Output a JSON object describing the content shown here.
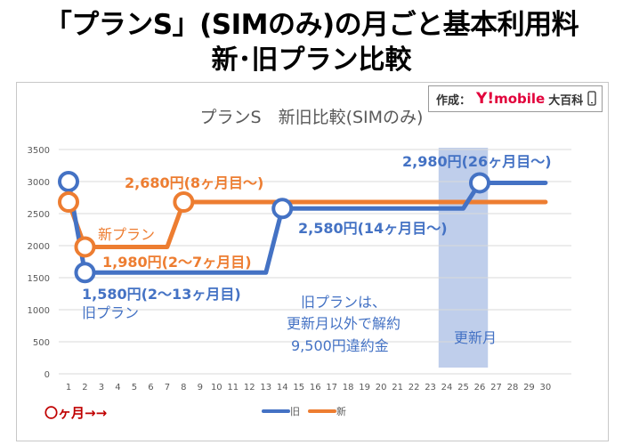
{
  "header": {
    "title_line1": "「プランS」(SIMのみ)の月ごと基本利用料",
    "title_line2": "新･旧プラン比較"
  },
  "credit": {
    "label": "作成：",
    "brand_y": "Y!",
    "brand_rest": "mobile",
    "suffix": "大百科"
  },
  "chart_data": {
    "type": "line",
    "title": "プランS　新旧比較(SIMのみ)",
    "xlabel": "〇ヶ月→→",
    "ylabel": "",
    "ylim": [
      0,
      3500
    ],
    "yticks": [
      0,
      500,
      1000,
      1500,
      2000,
      2500,
      3000,
      3500
    ],
    "categories": [
      1,
      2,
      3,
      4,
      5,
      6,
      7,
      8,
      9,
      10,
      11,
      12,
      13,
      14,
      15,
      16,
      17,
      18,
      19,
      20,
      21,
      22,
      23,
      24,
      25,
      26,
      27,
      28,
      29,
      30
    ],
    "series": [
      {
        "name": "旧",
        "color": "#4472c4",
        "values": [
          3000,
          1580,
          1580,
          1580,
          1580,
          1580,
          1580,
          1580,
          1580,
          1580,
          1580,
          1580,
          1580,
          2580,
          2580,
          2580,
          2580,
          2580,
          2580,
          2580,
          2580,
          2580,
          2580,
          2580,
          2580,
          2980,
          2980,
          2980,
          2980,
          2980
        ]
      },
      {
        "name": "新",
        "color": "#ed7d31",
        "values": [
          2680,
          1980,
          1980,
          1980,
          1980,
          1980,
          1980,
          2680,
          2680,
          2680,
          2680,
          2680,
          2680,
          2680,
          2680,
          2680,
          2680,
          2680,
          2680,
          2680,
          2680,
          2680,
          2680,
          2680,
          2680,
          2680,
          2680,
          2680,
          2680,
          2680
        ]
      }
    ],
    "markers": [
      {
        "series": 0,
        "x": 1,
        "y": 3000
      },
      {
        "series": 0,
        "x": 2,
        "y": 1580
      },
      {
        "series": 0,
        "x": 14,
        "y": 2580
      },
      {
        "series": 0,
        "x": 26,
        "y": 2980
      },
      {
        "series": 1,
        "x": 1,
        "y": 2680
      },
      {
        "series": 1,
        "x": 2,
        "y": 1980
      },
      {
        "series": 1,
        "x": 8,
        "y": 2680
      }
    ],
    "highlight_band": {
      "from": 23.5,
      "to": 26.5,
      "label": "更新月",
      "color": "#b4c6e7"
    },
    "annotations": [
      {
        "id": "new_plan",
        "text": "新プラン",
        "color": "#ed7d31"
      },
      {
        "id": "new_1980",
        "text": "1,980円(2〜7ヶ月目)",
        "color": "#ed7d31"
      },
      {
        "id": "new_2680",
        "text": "2,680円(8ヶ月目〜)",
        "color": "#ed7d31"
      },
      {
        "id": "old_1580",
        "text": "1,580円(2〜13ヶ月目)",
        "color": "#4472c4"
      },
      {
        "id": "old_plan",
        "text": "旧プラン",
        "color": "#4472c4"
      },
      {
        "id": "old_2580",
        "text": "2,580円(14ヶ月目〜)",
        "color": "#4472c4"
      },
      {
        "id": "old_2980",
        "text": "2,980円(26ヶ月目〜)",
        "color": "#4472c4"
      },
      {
        "id": "note1",
        "text": "旧プランは、",
        "color": "#4472c4"
      },
      {
        "id": "note2",
        "text": "更新月以外で解約",
        "color": "#4472c4"
      },
      {
        "id": "note3",
        "text": "9,500円違約金",
        "color": "#4472c4"
      }
    ],
    "legend": [
      {
        "name": "旧",
        "color": "#4472c4"
      },
      {
        "name": "新",
        "color": "#ed7d31"
      }
    ],
    "legend_position": "bottom-right"
  }
}
